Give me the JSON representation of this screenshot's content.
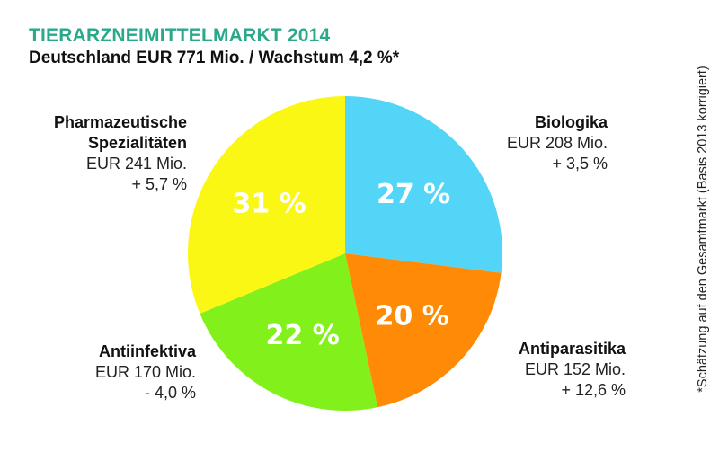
{
  "chart_data": {
    "type": "pie",
    "title": "TIERARZNEIMITTELMARKT 2014",
    "subtitle": "Deutschland EUR 771 Mio. / Wachstum 4,2 %*",
    "footnote": "*Schätzung auf den Gesamtmarkt (Basis 2013 korrigiert)",
    "slices": [
      {
        "name": "Biologika",
        "value": 208,
        "value_label": "EUR 208 Mio.",
        "growth": "+ 3,5 %",
        "percent": 27,
        "percent_label": "27 %",
        "color": "#52d5f7"
      },
      {
        "name": "Antiparasitika",
        "value": 152,
        "value_label": "EUR 152 Mio.",
        "growth": "+ 12,6 %",
        "percent": 20,
        "percent_label": "20 %",
        "color": "#ff8a05"
      },
      {
        "name": "Antiinfektiva",
        "value": 170,
        "value_label": "EUR 170 Mio.",
        "growth": "- 4,0 %",
        "percent": 22,
        "percent_label": "22 %",
        "color": "#82f01a"
      },
      {
        "name": "Pharmazeutische Spezialitäten",
        "value": 241,
        "value_label": "EUR 241 Mio.",
        "growth": "+ 5,7 %",
        "percent": 31,
        "percent_label": "31 %",
        "color": "#fbf714"
      }
    ]
  },
  "labels": {
    "pharma_line1": "Pharmazeutische",
    "pharma_line2": "Spezialitäten"
  }
}
